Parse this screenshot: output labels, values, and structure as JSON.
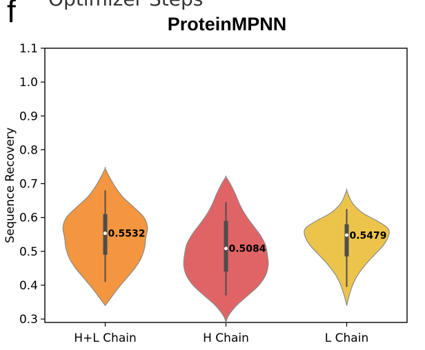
{
  "figure": {
    "panel_label": "f",
    "partial_heading": "Optimizer Steps"
  },
  "chart_data": {
    "type": "violin",
    "title": "ProteinMPNN",
    "xlabel": "",
    "ylabel": "Sequence Recovery",
    "ylim": [
      0.29,
      1.1
    ],
    "yticks": [
      0.3,
      0.4,
      0.5,
      0.6,
      0.7,
      0.8,
      0.9,
      1.0,
      1.1
    ],
    "categories": [
      "H+L Chain",
      "H Chain",
      "L Chain"
    ],
    "median_labels": [
      "0.5532",
      "0.5084",
      "0.5479"
    ],
    "series": [
      {
        "category": "H+L Chain",
        "color": "#f3963f",
        "median": 0.5532,
        "q1": 0.49,
        "q3": 0.61,
        "whisker_low": 0.41,
        "whisker_high": 0.68,
        "min": 0.34,
        "max": 0.745,
        "density": [
          [
            0.34,
            0.0
          ],
          [
            0.36,
            0.12
          ],
          [
            0.39,
            0.3
          ],
          [
            0.42,
            0.5
          ],
          [
            0.45,
            0.7
          ],
          [
            0.48,
            0.85
          ],
          [
            0.51,
            0.93
          ],
          [
            0.54,
            0.96
          ],
          [
            0.57,
            1.0
          ],
          [
            0.6,
            0.92
          ],
          [
            0.63,
            0.68
          ],
          [
            0.66,
            0.42
          ],
          [
            0.69,
            0.24
          ],
          [
            0.72,
            0.1
          ],
          [
            0.745,
            0.0
          ]
        ]
      },
      {
        "category": "H Chain",
        "color": "#e06466",
        "median": 0.5084,
        "q1": 0.44,
        "q3": 0.59,
        "whisker_low": 0.37,
        "whisker_high": 0.645,
        "min": 0.29,
        "max": 0.72,
        "density": [
          [
            0.29,
            0.0
          ],
          [
            0.31,
            0.06
          ],
          [
            0.34,
            0.25
          ],
          [
            0.37,
            0.52
          ],
          [
            0.4,
            0.78
          ],
          [
            0.43,
            0.94
          ],
          [
            0.46,
            1.0
          ],
          [
            0.49,
            0.98
          ],
          [
            0.52,
            0.93
          ],
          [
            0.55,
            0.8
          ],
          [
            0.58,
            0.62
          ],
          [
            0.61,
            0.45
          ],
          [
            0.64,
            0.32
          ],
          [
            0.67,
            0.22
          ],
          [
            0.7,
            0.1
          ],
          [
            0.72,
            0.0
          ]
        ]
      },
      {
        "category": "L Chain",
        "color": "#ecc44c",
        "median": 0.5479,
        "q1": 0.485,
        "q3": 0.58,
        "whisker_low": 0.395,
        "whisker_high": 0.625,
        "min": 0.34,
        "max": 0.68,
        "density": [
          [
            0.34,
            0.0
          ],
          [
            0.37,
            0.06
          ],
          [
            0.4,
            0.14
          ],
          [
            0.43,
            0.26
          ],
          [
            0.46,
            0.44
          ],
          [
            0.49,
            0.66
          ],
          [
            0.52,
            0.88
          ],
          [
            0.55,
            1.0
          ],
          [
            0.57,
            0.96
          ],
          [
            0.59,
            0.72
          ],
          [
            0.61,
            0.42
          ],
          [
            0.63,
            0.22
          ],
          [
            0.65,
            0.1
          ],
          [
            0.68,
            0.0
          ]
        ]
      }
    ],
    "grid": false
  }
}
